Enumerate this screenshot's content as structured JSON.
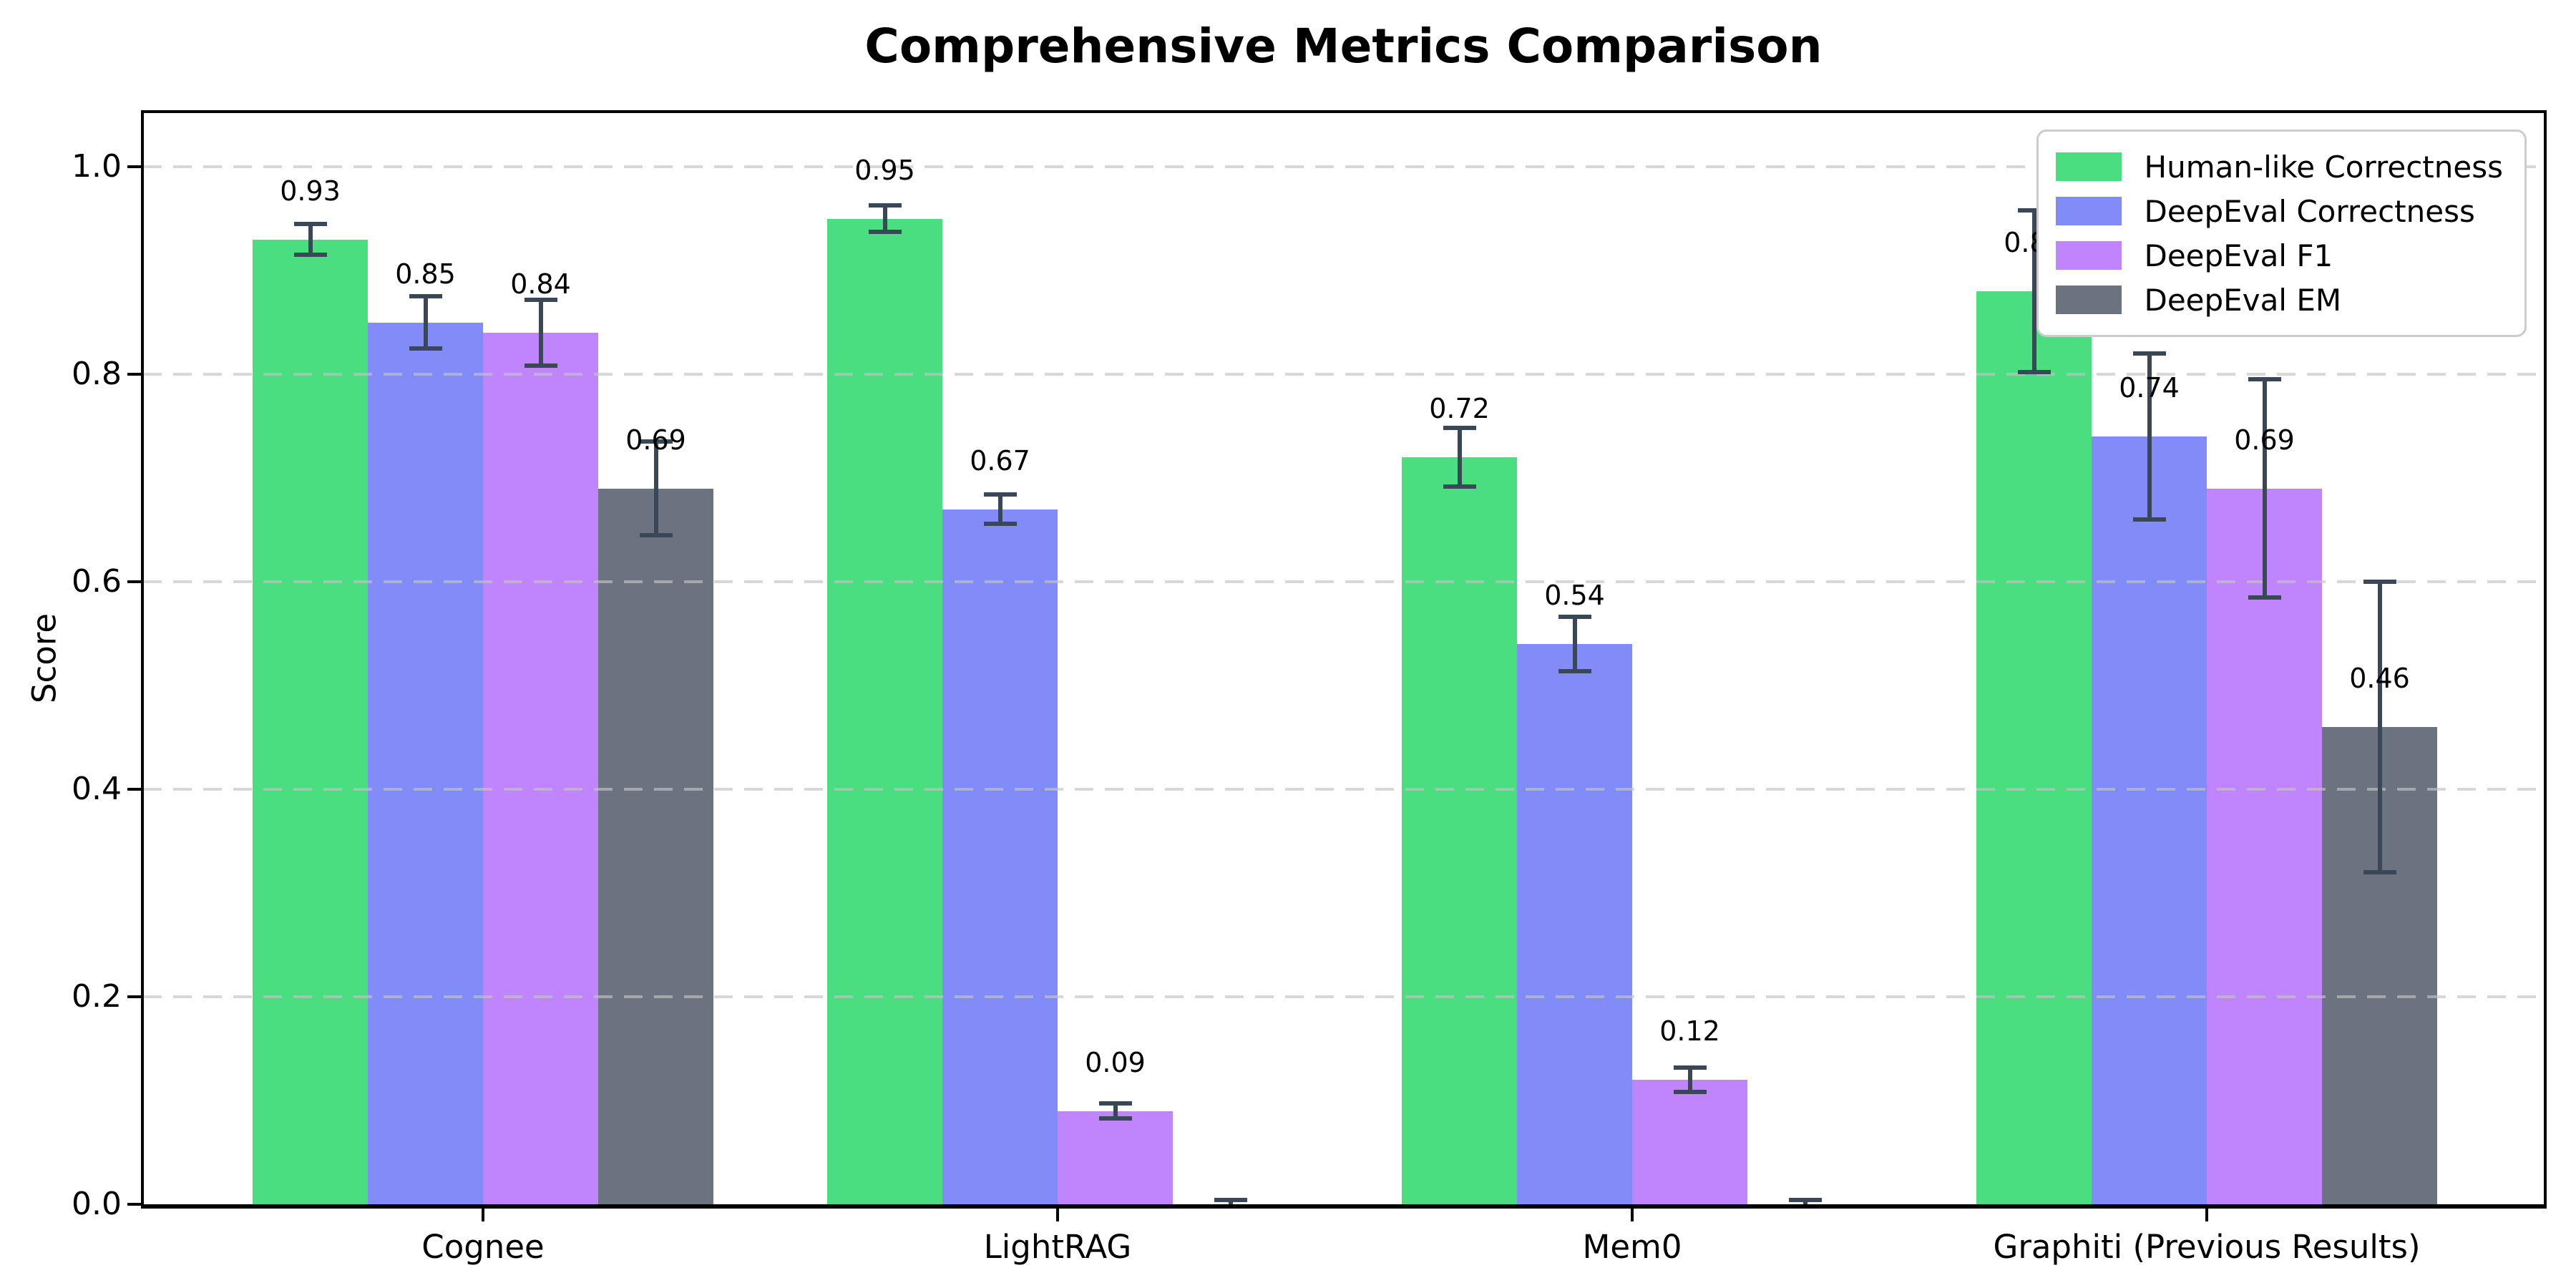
{
  "chart_data": {
    "type": "bar",
    "title": "Comprehensive Metrics Comparison",
    "xlabel": "",
    "ylabel": "Score",
    "categories": [
      "Cognee",
      "LightRAG",
      "Mem0",
      "Graphiti (Previous Results)"
    ],
    "ylim": [
      0,
      1.05
    ],
    "ytick_values": [
      0.0,
      0.2,
      0.4,
      0.6,
      0.8,
      1.0
    ],
    "ytick_labels": [
      "0.0",
      "0.2",
      "0.4",
      "0.6",
      "0.8",
      "1.0"
    ],
    "grid": "horizontal-dashed-over-bars",
    "legend_position": "upper right",
    "has_error_bars": true,
    "error_bar_color": "#3a4757",
    "axis_color": "#000000",
    "grid_color": "#c3c3c3",
    "background_color": "#ffffff",
    "series": [
      {
        "name": "Human-like Correctness",
        "color": "#4ade80",
        "values": [
          0.93,
          0.95,
          0.72,
          0.88
        ],
        "errors": [
          0.015,
          0.013,
          0.028,
          0.078
        ],
        "labels": [
          "0.93",
          "0.95",
          "0.72",
          "0.88"
        ]
      },
      {
        "name": "DeepEval Correctness",
        "color": "#818cf8",
        "values": [
          0.85,
          0.67,
          0.54,
          0.74
        ],
        "errors": [
          0.025,
          0.014,
          0.026,
          0.08
        ],
        "labels": [
          "0.85",
          "0.67",
          "0.54",
          "0.74"
        ]
      },
      {
        "name": "DeepEval F1",
        "color": "#c084fc",
        "values": [
          0.84,
          0.09,
          0.12,
          0.69
        ],
        "errors": [
          0.032,
          0.007,
          0.012,
          0.105
        ],
        "labels": [
          "0.84",
          "0.09",
          "0.12",
          "0.69"
        ]
      },
      {
        "name": "DeepEval EM",
        "color": "#6b7280",
        "values": [
          0.69,
          0.0,
          0.0,
          0.46
        ],
        "errors": [
          0.045,
          0.004,
          0.004,
          0.14
        ],
        "labels": [
          "0.69",
          "",
          "",
          "0.46"
        ]
      }
    ]
  }
}
